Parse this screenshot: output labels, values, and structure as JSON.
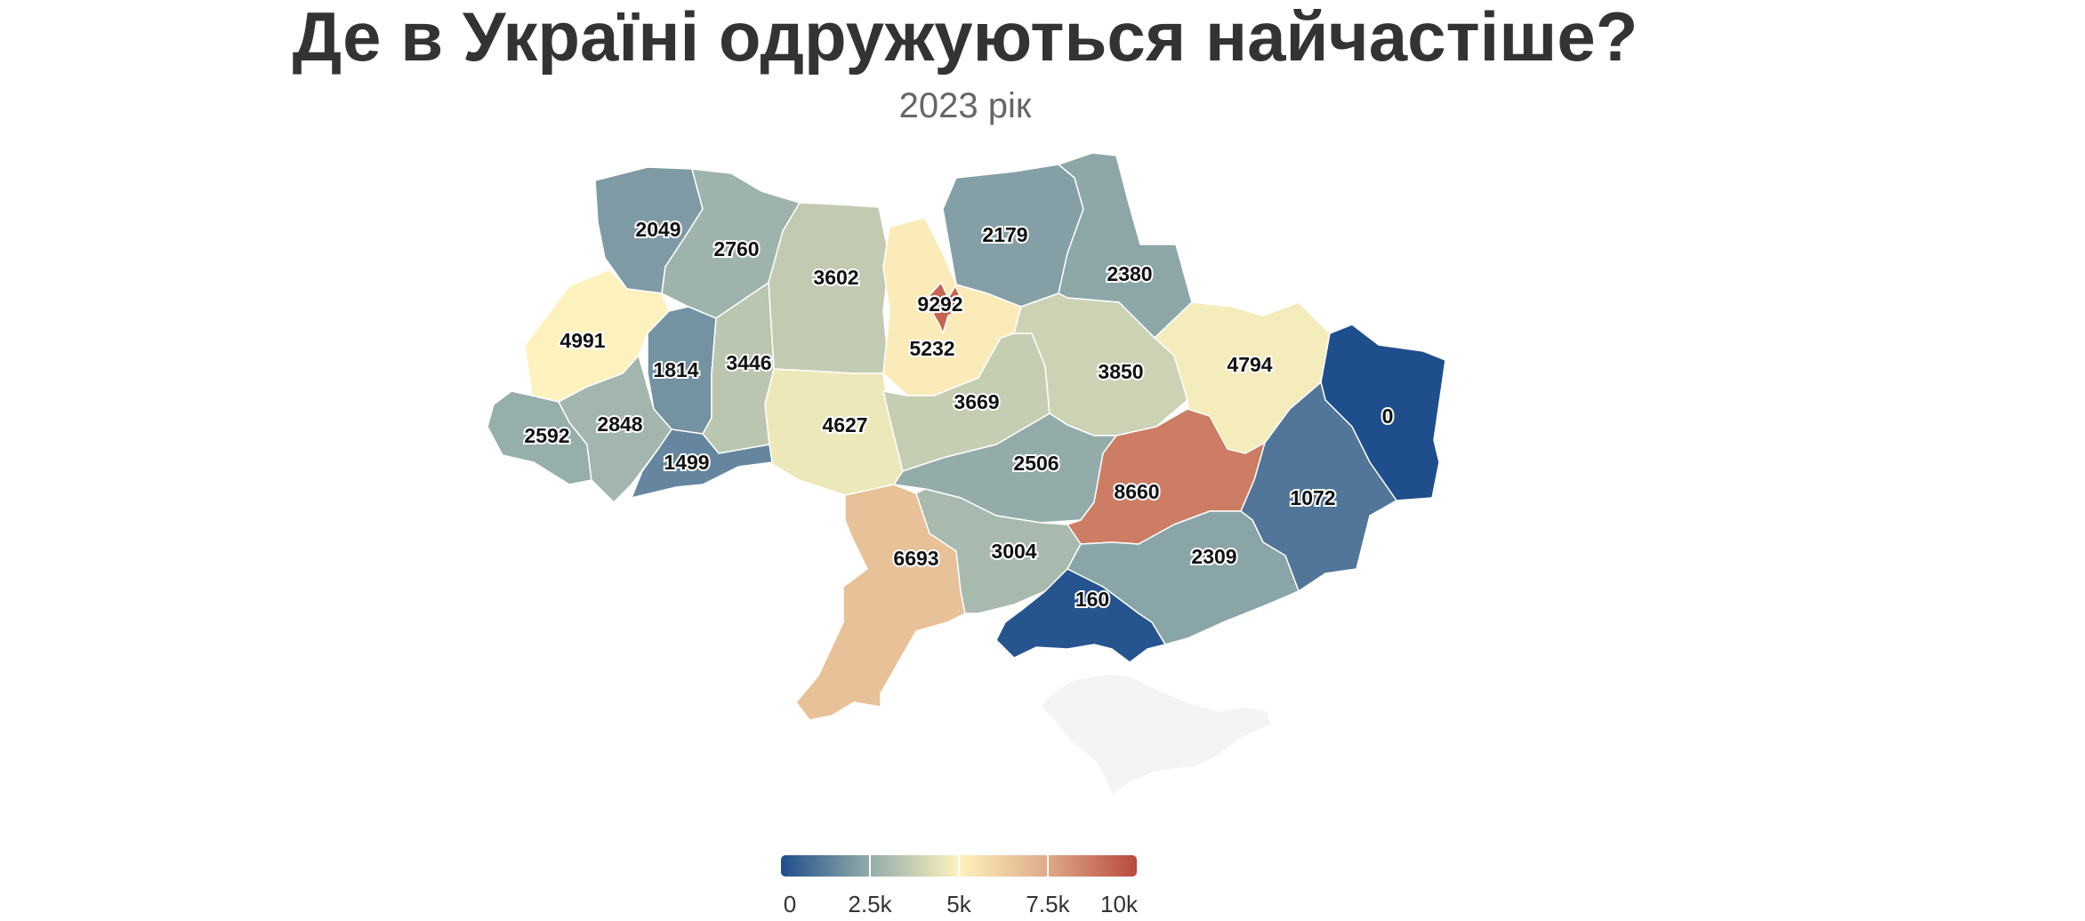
{
  "title": "Де в Україні одружуються найчастіше?",
  "subtitle": "2023 рік",
  "map": {
    "regions": [
      {
        "id": "volyn",
        "value": 2049
      },
      {
        "id": "rivne",
        "value": 2760
      },
      {
        "id": "zhytomyr",
        "value": 3602
      },
      {
        "id": "kyiv-oblast",
        "value": 5232
      },
      {
        "id": "kyiv-city",
        "value": 9292
      },
      {
        "id": "chernihiv",
        "value": 2179
      },
      {
        "id": "sumy",
        "value": 2380
      },
      {
        "id": "lviv",
        "value": 4991
      },
      {
        "id": "ternopil",
        "value": 1814
      },
      {
        "id": "khmelnytskyi",
        "value": 3446
      },
      {
        "id": "vinnytsia",
        "value": 4627
      },
      {
        "id": "cherkasy",
        "value": 3669
      },
      {
        "id": "poltava",
        "value": 3850
      },
      {
        "id": "kharkiv",
        "value": 4794
      },
      {
        "id": "luhansk",
        "value": 0
      },
      {
        "id": "zakarpattia",
        "value": 2592
      },
      {
        "id": "ivano-frankivsk",
        "value": 2848
      },
      {
        "id": "chernivtsi",
        "value": 1499
      },
      {
        "id": "kirovohrad",
        "value": 2506
      },
      {
        "id": "dnipropetrovsk",
        "value": 8660
      },
      {
        "id": "donetsk",
        "value": 1072
      },
      {
        "id": "odesa",
        "value": 6693
      },
      {
        "id": "mykolaiv",
        "value": 3004
      },
      {
        "id": "zaporizhzhia",
        "value": 2309
      },
      {
        "id": "kherson",
        "value": 160
      },
      {
        "id": "crimea",
        "value": null
      }
    ]
  },
  "colorscale": {
    "min": 0,
    "max": 10000,
    "stops": [
      "#1f4e8c",
      "#93acaa",
      "#fdf2bd",
      "#dea987",
      "#b84a3b"
    ],
    "no_data_color": "#f4f4f6",
    "ticks": [
      {
        "value": 0,
        "label": "0"
      },
      {
        "value": 2500,
        "label": "2.5k"
      },
      {
        "value": 5000,
        "label": "5k"
      },
      {
        "value": 7500,
        "label": "7.5k"
      },
      {
        "value": 10000,
        "label": "10k"
      }
    ]
  }
}
